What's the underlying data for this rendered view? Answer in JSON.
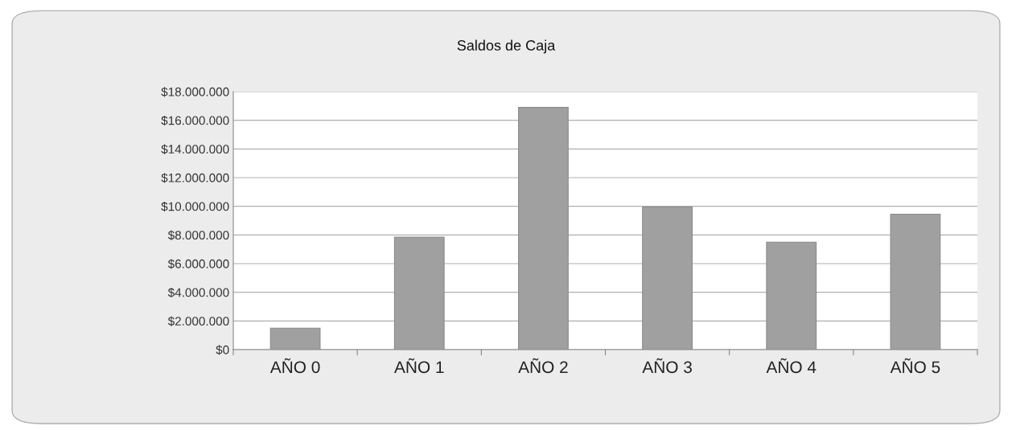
{
  "chart_data": {
    "type": "bar",
    "title": "Saldos de Caja",
    "categories": [
      "AÑO 0",
      "AÑO 1",
      "AÑO 2",
      "AÑO 3",
      "AÑO 4",
      "AÑO 5"
    ],
    "values": [
      1500000,
      7850000,
      16900000,
      9950000,
      7500000,
      9450000
    ],
    "color": "#a0a0a0",
    "ylim": [
      0,
      18000000
    ],
    "yticks": [
      {
        "value": 0,
        "label": "$0"
      },
      {
        "value": 2000000,
        "label": "$2.000.000"
      },
      {
        "value": 4000000,
        "label": "$4.000.000"
      },
      {
        "value": 6000000,
        "label": "$6.000.000"
      },
      {
        "value": 8000000,
        "label": "$8.000.000"
      },
      {
        "value": 10000000,
        "label": "$10.000.000"
      },
      {
        "value": 12000000,
        "label": "$12.000.000"
      },
      {
        "value": 14000000,
        "label": "$14.000.000"
      },
      {
        "value": 16000000,
        "label": "$16.000.000"
      },
      {
        "value": 18000000,
        "label": "$18.000.000"
      }
    ],
    "grid": "y"
  }
}
